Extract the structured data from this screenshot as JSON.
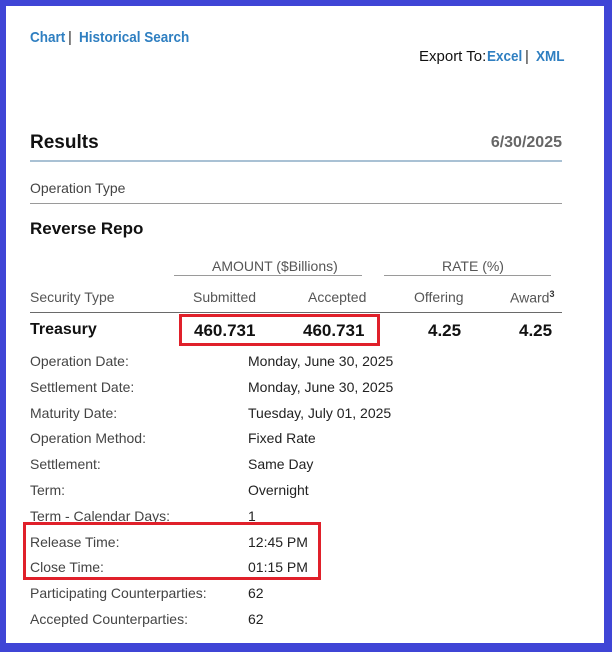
{
  "top_nav": {
    "chart": "Chart",
    "separator": "|",
    "historical_search": "Historical Search"
  },
  "export": {
    "label": "Export To:",
    "excel": "Excel",
    "separator": "|",
    "xml": "XML"
  },
  "results": {
    "title": "Results",
    "date": "6/30/2025"
  },
  "operation_type": {
    "label": "Operation Type",
    "value": "Reverse Repo"
  },
  "group_headers": {
    "amount": "AMOUNT ($Billions)",
    "rate": "RATE (%)"
  },
  "columns": {
    "security_type": "Security Type",
    "submitted": "Submitted",
    "accepted": "Accepted",
    "offering": "Offering",
    "award": "Award",
    "award_sup": "3"
  },
  "row": {
    "security": "Treasury",
    "submitted": "460.731",
    "accepted": "460.731",
    "offering": "4.25",
    "award": "4.25"
  },
  "details": [
    {
      "label": "Operation Date:",
      "value": "Monday, June 30, 2025"
    },
    {
      "label": "Settlement Date:",
      "value": "Monday, June 30, 2025"
    },
    {
      "label": "Maturity Date:",
      "value": "Tuesday, July 01, 2025"
    },
    {
      "label": "Operation Method:",
      "value": "Fixed Rate"
    },
    {
      "label": "Settlement:",
      "value": "Same Day"
    },
    {
      "label": "Term:",
      "value": "Overnight"
    },
    {
      "label": "Term - Calendar Days:",
      "value": "1"
    },
    {
      "label": "Release Time:",
      "value": "12:45 PM"
    },
    {
      "label": "Close Time:",
      "value": "01:15 PM"
    },
    {
      "label": "Participating Counterparties:",
      "value": "62"
    },
    {
      "label": "Accepted Counterparties:",
      "value": "62"
    }
  ],
  "highlight_color": "#e0202a",
  "link_color": "#2f7fc1",
  "frame_color": "#3f45d6"
}
